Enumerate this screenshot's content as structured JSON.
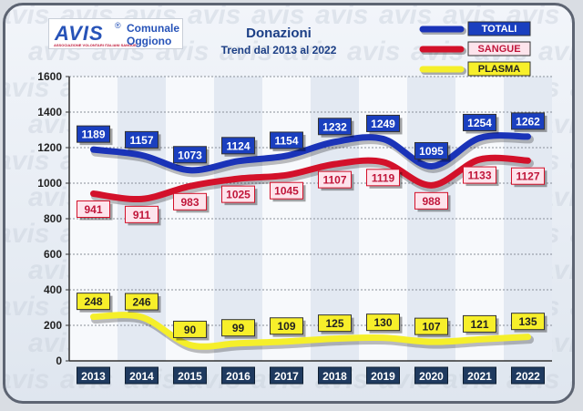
{
  "header": {
    "logo_mark": "AVIS",
    "logo_registered": "®",
    "logo_tagline": "ASSOCIAZIONE VOLONTARI ITALIANI SANGUE",
    "logo_line1": "Comunale",
    "logo_line2": "Oggiono",
    "title": "Donazioni",
    "subtitle": "Trend dal 2013 al 2022"
  },
  "watermark_text": "avis",
  "chart_data": {
    "type": "line",
    "title": "Donazioni",
    "subtitle": "Trend dal 2013 al 2022",
    "xlabel": "",
    "ylabel": "",
    "categories": [
      "2013",
      "2014",
      "2015",
      "2016",
      "2017",
      "2018",
      "2019",
      "2020",
      "2021",
      "2022"
    ],
    "ylim": [
      0,
      1600
    ],
    "yticks": [
      0,
      200,
      400,
      600,
      800,
      1000,
      1200,
      1400,
      1600
    ],
    "grid": true,
    "smooth": true,
    "legend_position": "top-right",
    "series": [
      {
        "name": "TOTALI",
        "color": "#1a33b8",
        "label_bg": "#1a3fbf",
        "label_fg": "#ffffff",
        "label_pos": "above",
        "values": [
          1189,
          1157,
          1073,
          1124,
          1154,
          1232,
          1249,
          1095,
          1254,
          1262
        ]
      },
      {
        "name": "SANGUE",
        "color": "#d3112a",
        "label_bg": "#fde4ec",
        "label_fg": "#c0163a",
        "label_pos": "below",
        "values": [
          941,
          911,
          983,
          1025,
          1045,
          1107,
          1119,
          988,
          1133,
          1127
        ]
      },
      {
        "name": "PLASMA",
        "color": "#f5ef2a",
        "label_bg": "#f7ef2a",
        "label_fg": "#222222",
        "label_pos": "above",
        "values": [
          248,
          246,
          90,
          99,
          109,
          125,
          130,
          107,
          121,
          135
        ]
      }
    ]
  }
}
